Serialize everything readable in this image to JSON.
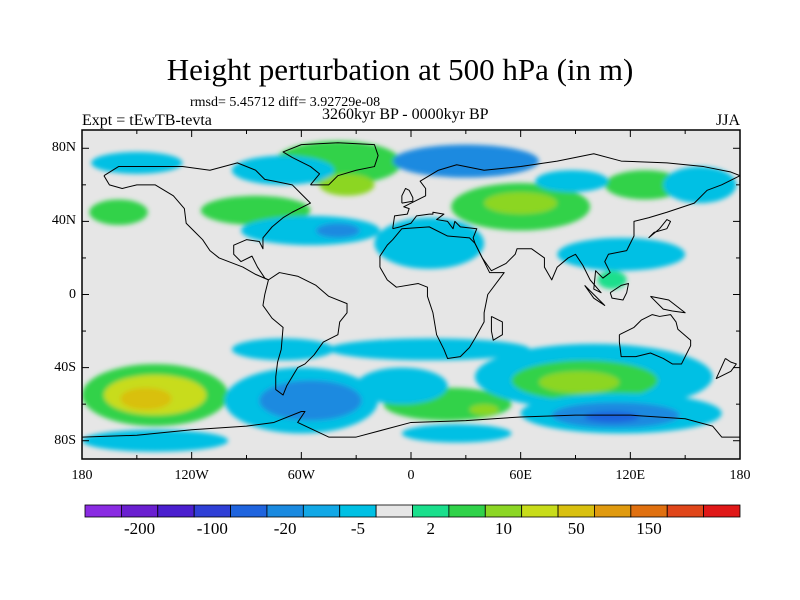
{
  "map": {
    "title": "Height perturbation at 500 hPa (in m)",
    "stats": "rmsd= 5.45712 diff= 3.92729e-08",
    "experiment": "Expt = tEwTB-tevta",
    "period": "3260kyr BP - 0000kyr BP",
    "season": "JJA",
    "projection": "cylindrical-equidistant",
    "lon_range": [
      -180,
      180
    ],
    "lat_range": [
      -90,
      90
    ],
    "lat_ticks": [
      {
        "lat": 80,
        "label": "80N"
      },
      {
        "lat": 40,
        "label": "40N"
      },
      {
        "lat": 0,
        "label": "0"
      },
      {
        "lat": -40,
        "label": "40S"
      },
      {
        "lat": -80,
        "label": "80S"
      }
    ],
    "lon_ticks": [
      {
        "lon": -180,
        "label": "180"
      },
      {
        "lon": -120,
        "label": "120W"
      },
      {
        "lon": -60,
        "label": "60W"
      },
      {
        "lon": 0,
        "label": "0"
      },
      {
        "lon": 60,
        "label": "60E"
      },
      {
        "lon": 120,
        "label": "120E"
      },
      {
        "lon": 180,
        "label": "180"
      }
    ]
  },
  "colorbar": {
    "colors": [
      "#8a2be2",
      "#6a1fd0",
      "#4b1fcf",
      "#2f3fd6",
      "#1f64de",
      "#1a8ae0",
      "#12a8e6",
      "#00c0e4",
      "#e6e6e6",
      "#1adf8c",
      "#30d24a",
      "#8cd624",
      "#c8dc1a",
      "#d9c00f",
      "#e09a0f",
      "#e0700f",
      "#e0461a",
      "#e01818"
    ],
    "labels": [
      {
        "text": "-200",
        "index": 1
      },
      {
        "text": "-100",
        "index": 3
      },
      {
        "text": "-20",
        "index": 5
      },
      {
        "text": "-5",
        "index": 7
      },
      {
        "text": "2",
        "index": 9
      },
      {
        "text": "10",
        "index": 11
      },
      {
        "text": "50",
        "index": 13
      },
      {
        "text": "150",
        "index": 15
      }
    ]
  },
  "anomaly_regions": [
    {
      "lon": -40,
      "lat": 72,
      "rx": 35,
      "ry": 12,
      "color": "#30d24a"
    },
    {
      "lon": -35,
      "lat": 60,
      "rx": 15,
      "ry": 6,
      "color": "#8cd624"
    },
    {
      "lon": -70,
      "lat": 68,
      "rx": 28,
      "ry": 8,
      "color": "#00c0e4"
    },
    {
      "lon": -85,
      "lat": 46,
      "rx": 30,
      "ry": 8,
      "color": "#30d24a"
    },
    {
      "lon": -55,
      "lat": 35,
      "rx": 38,
      "ry": 8,
      "color": "#00c0e4"
    },
    {
      "lon": -40,
      "lat": 35,
      "rx": 12,
      "ry": 4,
      "color": "#1a8ae0"
    },
    {
      "lon": -160,
      "lat": 45,
      "rx": 16,
      "ry": 7,
      "color": "#30d24a"
    },
    {
      "lon": -150,
      "lat": 72,
      "rx": 25,
      "ry": 6,
      "color": "#00c0e4"
    },
    {
      "lon": 30,
      "lat": 73,
      "rx": 40,
      "ry": 9,
      "color": "#1a8ae0"
    },
    {
      "lon": 10,
      "lat": 28,
      "rx": 30,
      "ry": 14,
      "color": "#00c0e4"
    },
    {
      "lon": 60,
      "lat": 48,
      "rx": 38,
      "ry": 13,
      "color": "#30d24a"
    },
    {
      "lon": 60,
      "lat": 50,
      "rx": 20,
      "ry": 6,
      "color": "#8cd624"
    },
    {
      "lon": 128,
      "lat": 60,
      "rx": 22,
      "ry": 8,
      "color": "#30d24a"
    },
    {
      "lon": 88,
      "lat": 62,
      "rx": 20,
      "ry": 6,
      "color": "#00c0e4"
    },
    {
      "lon": 158,
      "lat": 60,
      "rx": 20,
      "ry": 10,
      "color": "#00c0e4"
    },
    {
      "lon": 115,
      "lat": 22,
      "rx": 35,
      "ry": 9,
      "color": "#00c0e4"
    },
    {
      "lon": 110,
      "lat": 8,
      "rx": 8,
      "ry": 5,
      "color": "#1adf8c"
    },
    {
      "lon": -140,
      "lat": -55,
      "rx": 40,
      "ry": 17,
      "color": "#30d24a"
    },
    {
      "lon": -140,
      "lat": -55,
      "rx": 28,
      "ry": 11,
      "color": "#c8dc1a"
    },
    {
      "lon": -145,
      "lat": -57,
      "rx": 14,
      "ry": 6,
      "color": "#d9c00f"
    },
    {
      "lon": -60,
      "lat": -58,
      "rx": 42,
      "ry": 18,
      "color": "#00c0e4"
    },
    {
      "lon": -55,
      "lat": -58,
      "rx": 28,
      "ry": 11,
      "color": "#1a8ae0"
    },
    {
      "lon": -140,
      "lat": -80,
      "rx": 40,
      "ry": 6,
      "color": "#00c0e4"
    },
    {
      "lon": -70,
      "lat": -30,
      "rx": 28,
      "ry": 6,
      "color": "#00c0e4"
    },
    {
      "lon": 10,
      "lat": -30,
      "rx": 55,
      "ry": 6,
      "color": "#00c0e4"
    },
    {
      "lon": 20,
      "lat": -60,
      "rx": 35,
      "ry": 9,
      "color": "#30d24a"
    },
    {
      "lon": 40,
      "lat": -63,
      "rx": 8,
      "ry": 3,
      "color": "#8cd624"
    },
    {
      "lon": 25,
      "lat": -76,
      "rx": 30,
      "ry": 5,
      "color": "#00c0e4"
    },
    {
      "lon": 100,
      "lat": -45,
      "rx": 65,
      "ry": 18,
      "color": "#00c0e4"
    },
    {
      "lon": 95,
      "lat": -47,
      "rx": 40,
      "ry": 11,
      "color": "#30d24a"
    },
    {
      "lon": 92,
      "lat": -48,
      "rx": 22,
      "ry": 6,
      "color": "#8cd624"
    },
    {
      "lon": 115,
      "lat": -65,
      "rx": 55,
      "ry": 11,
      "color": "#00c0e4"
    },
    {
      "lon": 112,
      "lat": -66,
      "rx": 35,
      "ry": 7,
      "color": "#1a8ae0"
    },
    {
      "lon": 110,
      "lat": -67,
      "rx": 15,
      "ry": 3,
      "color": "#1f64de"
    },
    {
      "lon": -5,
      "lat": -50,
      "rx": 25,
      "ry": 10,
      "color": "#00c0e4"
    }
  ],
  "coastlines": [
    [
      [
        -168,
        65
      ],
      [
        -160,
        70
      ],
      [
        -140,
        70
      ],
      [
        -125,
        70
      ],
      [
        -110,
        68
      ],
      [
        -95,
        72
      ],
      [
        -85,
        68
      ],
      [
        -80,
        63
      ],
      [
        -75,
        62
      ],
      [
        -65,
        60
      ],
      [
        -60,
        55
      ],
      [
        -55,
        50
      ],
      [
        -65,
        45
      ],
      [
        -70,
        42
      ],
      [
        -76,
        37
      ],
      [
        -81,
        31
      ],
      [
        -81,
        25
      ],
      [
        -83,
        29
      ],
      [
        -90,
        30
      ],
      [
        -97,
        27
      ],
      [
        -97,
        22
      ],
      [
        -93,
        18
      ],
      [
        -87,
        21
      ],
      [
        -84,
        15
      ],
      [
        -80,
        9
      ],
      [
        -78,
        8
      ],
      [
        -85,
        11
      ],
      [
        -92,
        15
      ],
      [
        -105,
        20
      ],
      [
        -110,
        24
      ],
      [
        -114,
        30
      ],
      [
        -118,
        34
      ],
      [
        -123,
        39
      ],
      [
        -124,
        47
      ],
      [
        -130,
        54
      ],
      [
        -140,
        60
      ],
      [
        -150,
        60
      ],
      [
        -158,
        58
      ],
      [
        -165,
        60
      ],
      [
        -168,
        65
      ]
    ],
    [
      [
        -78,
        8
      ],
      [
        -72,
        12
      ],
      [
        -62,
        10
      ],
      [
        -52,
        5
      ],
      [
        -45,
        -1
      ],
      [
        -35,
        -5
      ],
      [
        -35,
        -10
      ],
      [
        -39,
        -15
      ],
      [
        -40,
        -22
      ],
      [
        -48,
        -26
      ],
      [
        -53,
        -33
      ],
      [
        -58,
        -38
      ],
      [
        -62,
        -40
      ],
      [
        -65,
        -45
      ],
      [
        -68,
        -50
      ],
      [
        -70,
        -55
      ],
      [
        -74,
        -52
      ],
      [
        -74,
        -45
      ],
      [
        -73,
        -37
      ],
      [
        -71,
        -30
      ],
      [
        -70,
        -18
      ],
      [
        -76,
        -13
      ],
      [
        -81,
        -6
      ],
      [
        -80,
        0
      ],
      [
        -78,
        8
      ]
    ],
    [
      [
        -55,
        60
      ],
      [
        -45,
        60
      ],
      [
        -40,
        65
      ],
      [
        -30,
        68
      ],
      [
        -20,
        70
      ],
      [
        -18,
        76
      ],
      [
        -20,
        82
      ],
      [
        -40,
        83
      ],
      [
        -60,
        82
      ],
      [
        -70,
        78
      ],
      [
        -65,
        75
      ],
      [
        -55,
        70
      ],
      [
        -50,
        66
      ],
      [
        -55,
        60
      ]
    ],
    [
      [
        -17,
        15
      ],
      [
        -17,
        21
      ],
      [
        -13,
        27
      ],
      [
        -10,
        30
      ],
      [
        -5,
        36
      ],
      [
        10,
        37
      ],
      [
        20,
        32
      ],
      [
        32,
        31
      ],
      [
        35,
        28
      ],
      [
        43,
        12
      ],
      [
        51,
        12
      ],
      [
        42,
        0
      ],
      [
        40,
        -10
      ],
      [
        40,
        -15
      ],
      [
        35,
        -24
      ],
      [
        32,
        -29
      ],
      [
        27,
        -34
      ],
      [
        20,
        -35
      ],
      [
        18,
        -30
      ],
      [
        14,
        -22
      ],
      [
        12,
        -10
      ],
      [
        9,
        -1
      ],
      [
        9,
        4
      ],
      [
        4,
        6
      ],
      [
        -8,
        4
      ],
      [
        -13,
        8
      ],
      [
        -17,
        15
      ]
    ],
    [
      [
        -10,
        36
      ],
      [
        -9,
        43
      ],
      [
        -2,
        44
      ],
      [
        -1,
        47
      ],
      [
        -4,
        48
      ],
      [
        2,
        51
      ],
      [
        8,
        54
      ],
      [
        8,
        58
      ],
      [
        5,
        62
      ],
      [
        15,
        68
      ],
      [
        25,
        71
      ],
      [
        40,
        68
      ],
      [
        60,
        70
      ],
      [
        80,
        73
      ],
      [
        100,
        77
      ],
      [
        115,
        73
      ],
      [
        140,
        72
      ],
      [
        160,
        70
      ],
      [
        175,
        67
      ],
      [
        180,
        65
      ],
      [
        170,
        60
      ],
      [
        162,
        57
      ],
      [
        155,
        50
      ],
      [
        140,
        45
      ],
      [
        130,
        42
      ],
      [
        122,
        40
      ],
      [
        122,
        32
      ],
      [
        118,
        24
      ],
      [
        108,
        22
      ],
      [
        106,
        18
      ],
      [
        109,
        12
      ],
      [
        105,
        9
      ],
      [
        101,
        13
      ],
      [
        100,
        3
      ],
      [
        104,
        1
      ],
      [
        98,
        8
      ],
      [
        94,
        16
      ],
      [
        90,
        22
      ],
      [
        86,
        20
      ],
      [
        80,
        15
      ],
      [
        77,
        8
      ],
      [
        73,
        15
      ],
      [
        73,
        20
      ],
      [
        66,
        25
      ],
      [
        58,
        25
      ],
      [
        57,
        22
      ],
      [
        52,
        17
      ],
      [
        44,
        13
      ],
      [
        39,
        20
      ],
      [
        35,
        28
      ],
      [
        34,
        31
      ],
      [
        36,
        36
      ],
      [
        27,
        37
      ],
      [
        24,
        40
      ],
      [
        23,
        36
      ],
      [
        20,
        40
      ],
      [
        14,
        41
      ],
      [
        18,
        44
      ],
      [
        12,
        45
      ],
      [
        12,
        44
      ],
      [
        10,
        44
      ],
      [
        3,
        43
      ],
      [
        0,
        39
      ],
      [
        -6,
        37
      ],
      [
        -10,
        36
      ]
    ],
    [
      [
        114,
        -22
      ],
      [
        114,
        -26
      ],
      [
        115,
        -34
      ],
      [
        123,
        -34
      ],
      [
        131,
        -32
      ],
      [
        138,
        -35
      ],
      [
        143,
        -38
      ],
      [
        148,
        -38
      ],
      [
        153,
        -28
      ],
      [
        153,
        -25
      ],
      [
        146,
        -19
      ],
      [
        145,
        -15
      ],
      [
        142,
        -11
      ],
      [
        136,
        -12
      ],
      [
        132,
        -11
      ],
      [
        126,
        -14
      ],
      [
        122,
        -18
      ],
      [
        114,
        -22
      ]
    ],
    [
      [
        -5,
        50
      ],
      [
        -5,
        54
      ],
      [
        -3,
        58
      ],
      [
        -1,
        57
      ],
      [
        1,
        53
      ],
      [
        1,
        51
      ],
      [
        -5,
        50
      ]
    ],
    [
      [
        -180,
        -78
      ],
      [
        -150,
        -77
      ],
      [
        -120,
        -74
      ],
      [
        -90,
        -72
      ],
      [
        -75,
        -70
      ],
      [
        -60,
        -64
      ],
      [
        -58,
        -64
      ],
      [
        -62,
        -70
      ],
      [
        -45,
        -78
      ],
      [
        -30,
        -78
      ],
      [
        0,
        -70
      ],
      [
        30,
        -69
      ],
      [
        60,
        -67
      ],
      [
        90,
        -66
      ],
      [
        120,
        -66
      ],
      [
        150,
        -68
      ],
      [
        165,
        -72
      ],
      [
        170,
        -78
      ],
      [
        180,
        -78
      ]
    ],
    [
      [
        44,
        -12
      ],
      [
        50,
        -15
      ],
      [
        50,
        -22
      ],
      [
        45,
        -25
      ],
      [
        44,
        -20
      ],
      [
        44,
        -12
      ]
    ],
    [
      [
        130,
        31
      ],
      [
        133,
        34
      ],
      [
        140,
        36
      ],
      [
        142,
        40
      ],
      [
        140,
        41
      ],
      [
        136,
        36
      ],
      [
        130,
        31
      ]
    ],
    [
      [
        95,
        5
      ],
      [
        105,
        -5
      ],
      [
        106,
        -6
      ],
      [
        100,
        -2
      ],
      [
        95,
        5
      ]
    ],
    [
      [
        109,
        1
      ],
      [
        115,
        5
      ],
      [
        119,
        6
      ],
      [
        118,
        1
      ],
      [
        116,
        -3
      ],
      [
        110,
        -2
      ],
      [
        109,
        1
      ]
    ],
    [
      [
        131,
        -1
      ],
      [
        141,
        -3
      ],
      [
        150,
        -10
      ],
      [
        143,
        -9
      ],
      [
        138,
        -8
      ],
      [
        131,
        -1
      ]
    ],
    [
      [
        172,
        -35
      ],
      [
        175,
        -37
      ],
      [
        178,
        -38
      ],
      [
        175,
        -42
      ],
      [
        171,
        -44
      ],
      [
        167,
        -46
      ],
      [
        172,
        -35
      ]
    ]
  ]
}
